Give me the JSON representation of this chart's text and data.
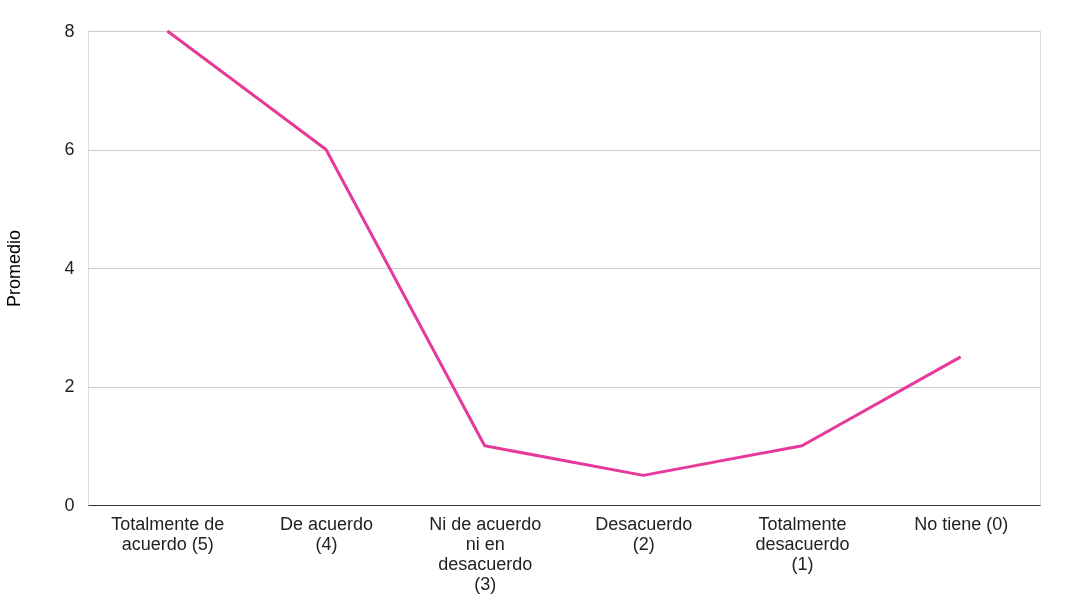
{
  "chart_data": {
    "type": "line",
    "ylabel": "Promedio",
    "categories": [
      "Totalmente de acuerdo (5)",
      "De acuerdo (4)",
      "Ni de acuerdo ni en desacuerdo (3)",
      "Desacuerdo (2)",
      "Totalmente desacuerdo (1)",
      "No tiene (0)"
    ],
    "series": [
      {
        "color": "#e6399b",
        "values": [
          8,
          6,
          1,
          0.5,
          1,
          2.5
        ]
      }
    ],
    "ylim": [
      0,
      8
    ],
    "yticks": [
      0,
      2,
      4,
      6,
      8
    ],
    "grid": "y",
    "marker": "none",
    "line_style": "solid"
  }
}
